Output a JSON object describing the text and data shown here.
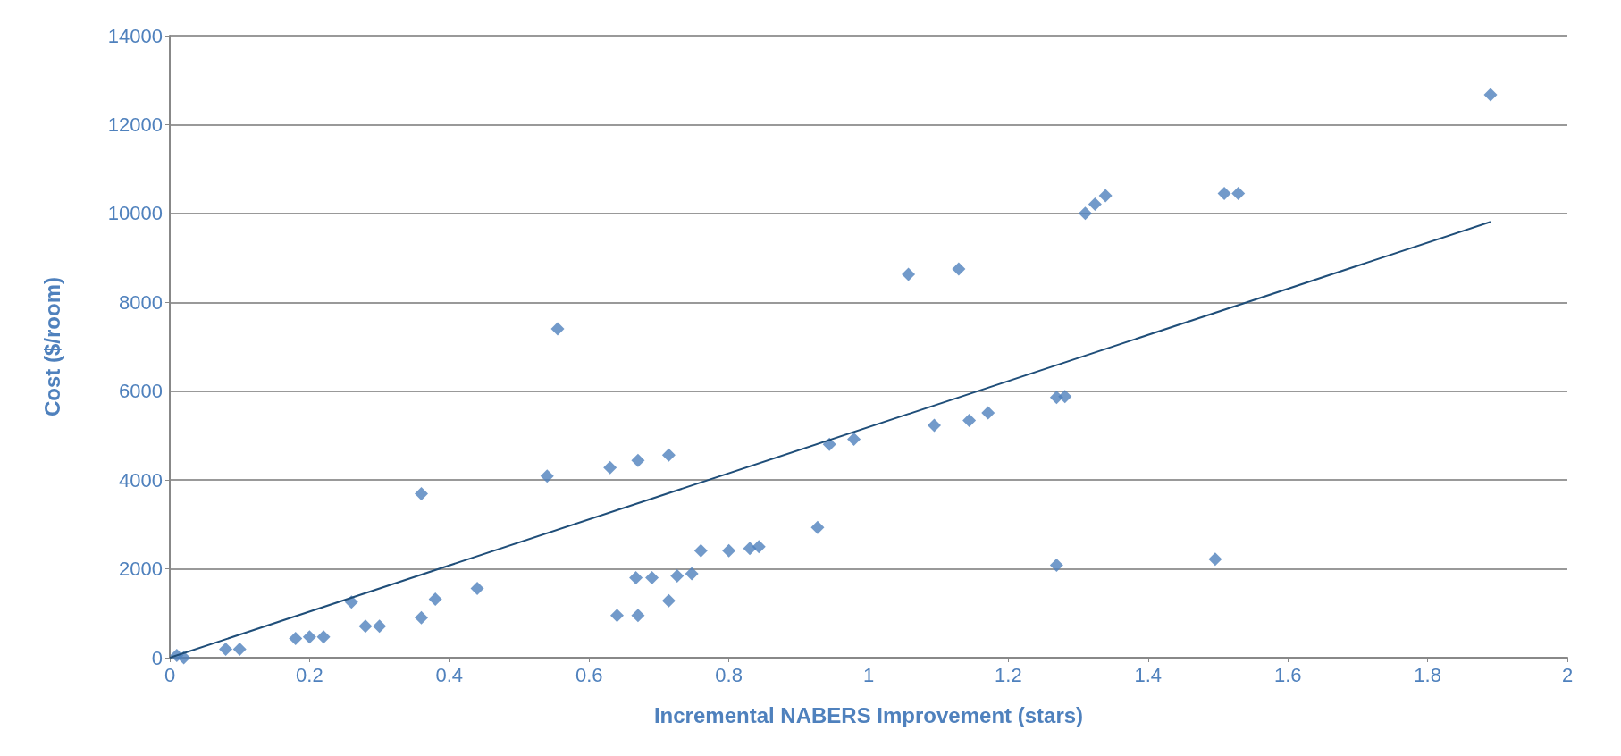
{
  "chart_data": {
    "type": "scatter",
    "xlabel": "Incremental NABERS Improvement (stars)",
    "ylabel": "Cost ($/room)",
    "xlim": [
      0,
      2
    ],
    "xticks": [
      0,
      0.2,
      0.4,
      0.6,
      0.8,
      1,
      1.2,
      1.4,
      1.6,
      1.8,
      2
    ],
    "ylim": [
      0,
      14000
    ],
    "yticks": [
      0,
      2000,
      4000,
      6000,
      8000,
      10000,
      12000,
      14000
    ],
    "grid": "y",
    "marker": "diamond",
    "series": [
      {
        "color": "#4f81bd",
        "x": [
          0.01,
          0.02,
          0.08,
          0.1,
          0.18,
          0.2,
          0.22,
          0.26,
          0.28,
          0.3,
          0.36,
          0.36,
          0.38,
          0.44,
          0.54,
          0.555,
          0.63,
          0.64,
          0.67,
          0.667,
          0.67,
          0.69,
          0.714,
          0.714,
          0.726,
          0.747,
          0.76,
          0.8,
          0.83,
          0.843,
          0.927,
          0.944,
          0.979,
          1.057,
          1.094,
          1.129,
          1.144,
          1.171,
          1.269,
          1.281,
          1.269,
          1.31,
          1.324,
          1.339,
          1.496,
          1.509,
          1.529,
          1.89
        ],
        "values": [
          50,
          0,
          190,
          190,
          430,
          470,
          470,
          1250,
          710,
          710,
          3690,
          900,
          1320,
          1560,
          4090,
          7400,
          4280,
          950,
          4440,
          1800,
          950,
          1800,
          4560,
          1280,
          1840,
          1890,
          2410,
          2410,
          2460,
          2500,
          2930,
          4800,
          4920,
          8630,
          5230,
          8750,
          5340,
          5510,
          5860,
          5880,
          2080,
          10000,
          10210,
          10400,
          2220,
          10450,
          10450,
          12670
        ]
      },
      {
        "type": "line",
        "color": "#1f4e79",
        "marker": "none",
        "line_style": "solid",
        "x": [
          0,
          1.89
        ],
        "values": [
          0,
          9810
        ]
      }
    ]
  }
}
